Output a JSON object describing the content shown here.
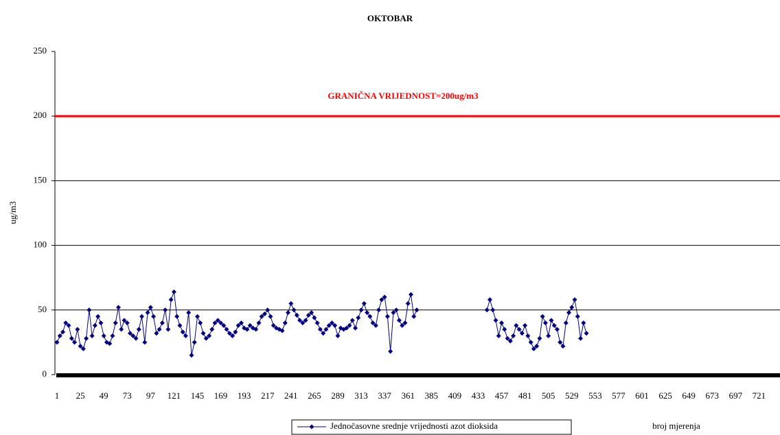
{
  "chart_data": {
    "type": "line",
    "title": "OKTOBAR",
    "y_label": "ug/m3",
    "x_label": "broj mjerenja",
    "xlim": [
      1,
      744
    ],
    "xticks": [
      1,
      25,
      49,
      73,
      97,
      121,
      145,
      169,
      193,
      217,
      241,
      265,
      289,
      313,
      337,
      361,
      385,
      409,
      433,
      457,
      481,
      505,
      529,
      553,
      577,
      601,
      625,
      649,
      673,
      697,
      721
    ],
    "ylim": [
      0,
      250
    ],
    "yticks": [
      0,
      50,
      100,
      150,
      200,
      250
    ],
    "grid": true,
    "threshold": {
      "value": 200,
      "label": "GRANIČNA VRIJEDNOST=200ug/m3",
      "color": "#ff0000"
    },
    "legend": "bottom",
    "series": [
      {
        "name": "Jednočasovne srednje vrijednosti azot dioksida",
        "color": "#000080",
        "x": [
          1,
          4,
          7,
          10,
          13,
          16,
          19,
          22,
          25,
          28,
          31,
          34,
          37,
          40,
          43,
          46,
          49,
          52,
          55,
          58,
          61,
          64,
          67,
          70,
          73,
          76,
          79,
          82,
          85,
          88,
          91,
          94,
          97,
          100,
          103,
          106,
          109,
          112,
          115,
          118,
          121,
          124,
          127,
          130,
          133,
          136,
          139,
          142,
          145,
          148,
          151,
          154,
          157,
          160,
          163,
          166,
          169,
          172,
          175,
          178,
          181,
          184,
          187,
          190,
          193,
          196,
          199,
          202,
          205,
          208,
          211,
          214,
          217,
          220,
          223,
          226,
          229,
          232,
          235,
          238,
          241,
          244,
          247,
          250,
          253,
          256,
          259,
          262,
          265,
          268,
          271,
          274,
          277,
          280,
          283,
          286,
          289,
          292,
          295,
          298,
          301,
          304,
          307,
          310,
          313,
          316,
          319,
          322,
          325,
          328,
          331,
          334,
          337,
          340,
          343,
          346,
          349,
          352,
          355,
          358,
          361,
          364,
          367,
          370,
          400,
          442,
          445,
          448,
          451,
          454,
          457,
          460,
          463,
          466,
          469,
          472,
          475,
          478,
          481,
          484,
          487,
          490,
          493,
          496,
          499,
          502,
          505,
          508,
          511,
          514,
          517,
          520,
          523,
          526,
          529,
          532,
          535,
          538,
          541,
          544
        ],
        "values": [
          25,
          30,
          33,
          40,
          38,
          28,
          25,
          35,
          22,
          20,
          28,
          50,
          30,
          38,
          45,
          40,
          30,
          25,
          24,
          30,
          40,
          52,
          35,
          42,
          40,
          32,
          30,
          28,
          35,
          45,
          25,
          48,
          52,
          45,
          32,
          35,
          40,
          50,
          35,
          58,
          64,
          45,
          38,
          33,
          30,
          48,
          15,
          25,
          45,
          40,
          32,
          28,
          30,
          35,
          40,
          42,
          40,
          38,
          35,
          32,
          30,
          33,
          38,
          40,
          36,
          35,
          38,
          36,
          35,
          40,
          45,
          47,
          50,
          45,
          38,
          36,
          35,
          34,
          40,
          48,
          55,
          50,
          46,
          42,
          40,
          42,
          46,
          48,
          44,
          40,
          35,
          32,
          35,
          38,
          40,
          38,
          30,
          36,
          35,
          36,
          38,
          42,
          36,
          44,
          50,
          55,
          48,
          45,
          40,
          38,
          50,
          58,
          60,
          45,
          18,
          48,
          50,
          42,
          38,
          40,
          55,
          62,
          45,
          50,
          null,
          50,
          58,
          50,
          42,
          30,
          40,
          35,
          28,
          26,
          30,
          38,
          35,
          32,
          38,
          30,
          25,
          20,
          22,
          28,
          45,
          40,
          30,
          42,
          38,
          35,
          25,
          22,
          40,
          48,
          52,
          58,
          45,
          28,
          40,
          32
        ]
      }
    ]
  }
}
